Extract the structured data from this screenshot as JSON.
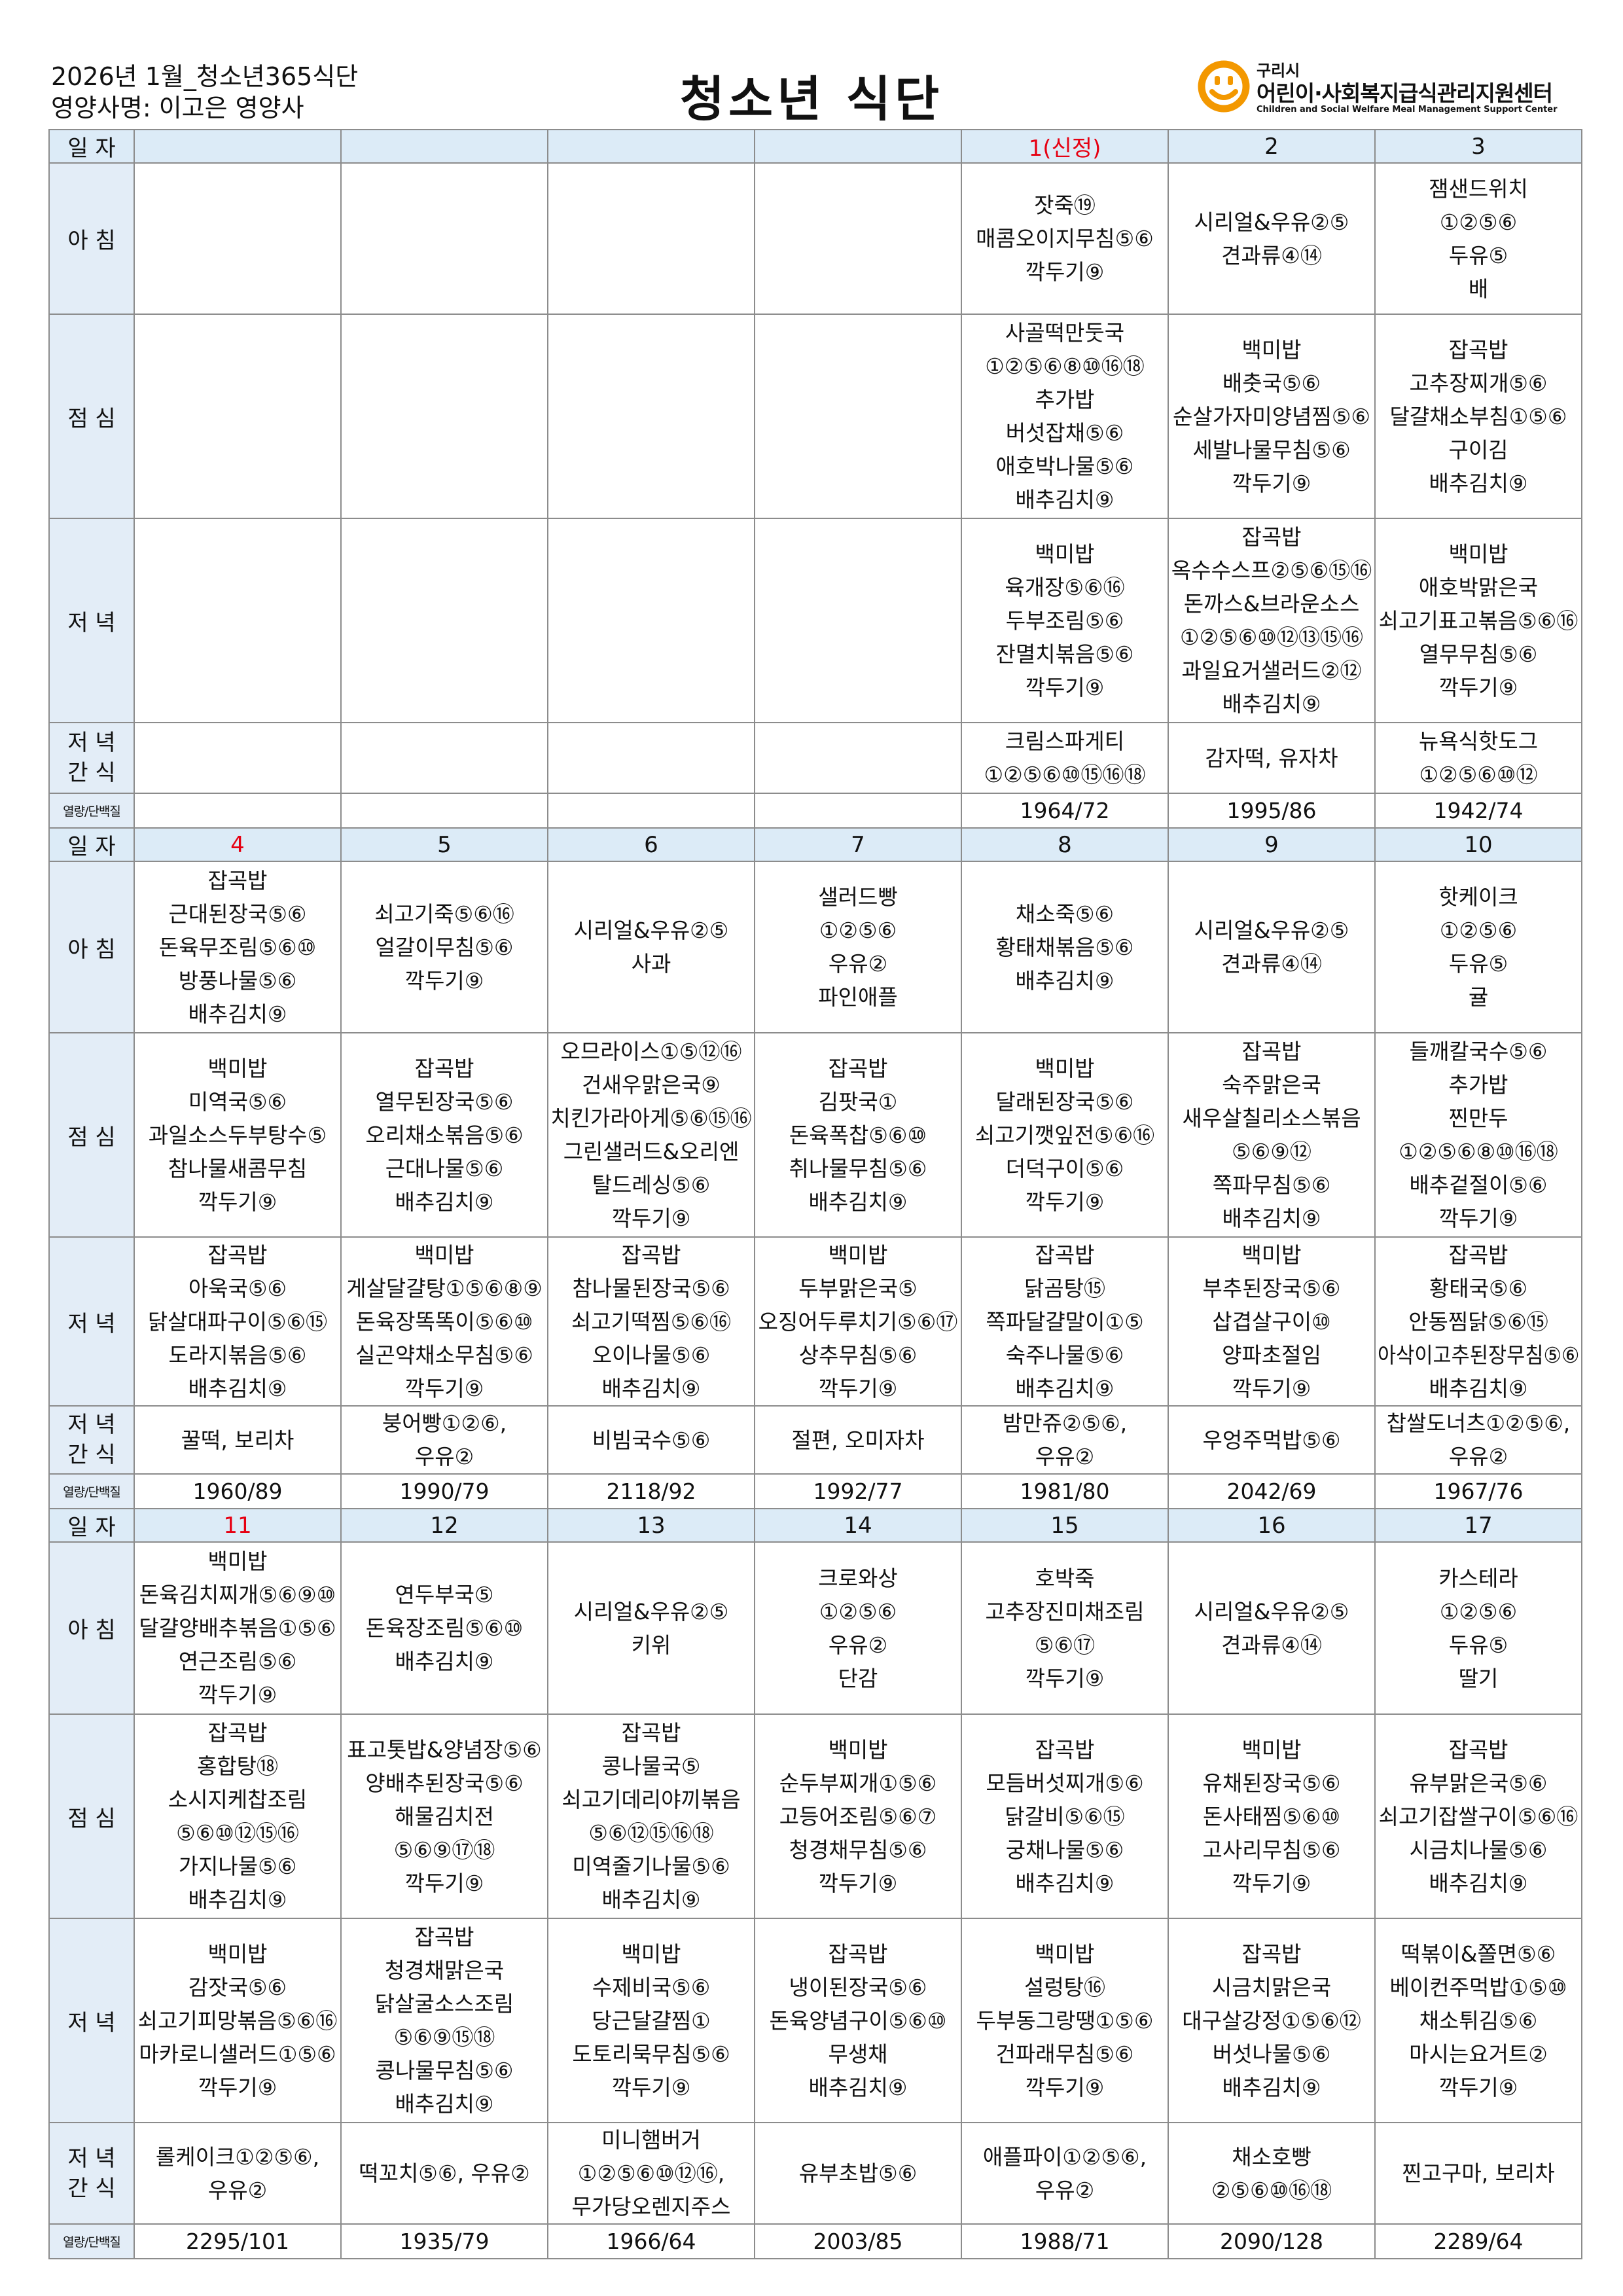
{
  "header": {
    "left_line1": "2026년 1월_청소년365식단",
    "left_line2": "영양사명: 이고은 영양사",
    "title": "청소년 식단",
    "logo_city": "구리시",
    "logo_name": "어린이·사회복지급식관리지원센터",
    "logo_sub": "Children and Social Welfare Meal Management Support Center"
  },
  "table": {
    "holiday_color": "#e60012",
    "weeks": [
      {
        "day_label": "일 자",
        "days": [
          null,
          null,
          null,
          null,
          "1(신정)",
          "2",
          "3"
        ],
        "holidays": [
          4
        ],
        "rows": [
          {
            "label": [
              "아 침"
            ],
            "cells": [
              null,
              null,
              null,
              null,
              [
                "잣죽⑲",
                "매콤오이지무침⑤⑥",
                "깍두기⑨"
              ],
              [
                "시리얼&우유②⑤",
                "견과류④⑭"
              ],
              [
                "잼샌드위치",
                "①②⑤⑥",
                "두유⑤",
                "배"
              ]
            ]
          },
          {
            "label": [
              "점 심"
            ],
            "cells": [
              null,
              null,
              null,
              null,
              [
                "사골떡만둣국",
                "①②⑤⑥⑧⑩⑯⑱",
                "추가밥",
                "버섯잡채⑤⑥",
                "애호박나물⑤⑥",
                "배추김치⑨"
              ],
              [
                "백미밥",
                "배춧국⑤⑥",
                "순살가자미양념찜⑤⑥",
                "세발나물무침⑤⑥",
                "깍두기⑨"
              ],
              [
                "잡곡밥",
                "고추장찌개⑤⑥",
                "달걀채소부침①⑤⑥",
                "구이김",
                "배추김치⑨"
              ]
            ]
          },
          {
            "label": [
              "저 녁"
            ],
            "cells": [
              null,
              null,
              null,
              null,
              [
                "백미밥",
                "육개장⑤⑥⑯",
                "두부조림⑤⑥",
                "잔멸치볶음⑤⑥",
                "깍두기⑨"
              ],
              [
                "잡곡밥",
                "옥수수스프②⑤⑥⑮⑯",
                "돈까스&브라운소스",
                "①②⑤⑥⑩⑫⑬⑮⑯",
                "과일요거샐러드②⑫",
                "배추김치⑨"
              ],
              [
                "백미밥",
                "애호박맑은국",
                "쇠고기표고볶음⑤⑥⑯",
                "열무무침⑤⑥",
                "깍두기⑨"
              ]
            ]
          },
          {
            "label": [
              "저 녁",
              "간 식"
            ],
            "cells": [
              null,
              null,
              null,
              null,
              [
                "크림스파게티",
                "①②⑤⑥⑩⑮⑯⑱"
              ],
              [
                "감자떡, 유자차"
              ],
              [
                "뉴욕식핫도그",
                "①②⑤⑥⑩⑫"
              ]
            ]
          },
          {
            "label": [
              "열량/단백질"
            ],
            "cells": [
              null,
              null,
              null,
              null,
              [
                "1964/72"
              ],
              [
                "1995/86"
              ],
              [
                "1942/74"
              ]
            ]
          }
        ]
      },
      {
        "day_label": "일 자",
        "days": [
          "4",
          "5",
          "6",
          "7",
          "8",
          "9",
          "10"
        ],
        "holidays": [
          0
        ],
        "rows": [
          {
            "label": [
              "아 침"
            ],
            "cells": [
              [
                "잡곡밥",
                "근대된장국⑤⑥",
                "돈육무조림⑤⑥⑩",
                "방풍나물⑤⑥",
                "배추김치⑨"
              ],
              [
                "쇠고기죽⑤⑥⑯",
                "얼갈이무침⑤⑥",
                "깍두기⑨"
              ],
              [
                "시리얼&우유②⑤",
                "사과"
              ],
              [
                "샐러드빵",
                "①②⑤⑥",
                "우유②",
                "파인애플"
              ],
              [
                "채소죽⑤⑥",
                "황태채볶음⑤⑥",
                "배추김치⑨"
              ],
              [
                "시리얼&우유②⑤",
                "견과류④⑭"
              ],
              [
                "핫케이크",
                "①②⑤⑥",
                "두유⑤",
                "귤"
              ]
            ]
          },
          {
            "label": [
              "점 심"
            ],
            "cells": [
              [
                "백미밥",
                "미역국⑤⑥",
                "과일소스두부탕수⑤",
                "참나물새콤무침",
                "깍두기⑨"
              ],
              [
                "잡곡밥",
                "열무된장국⑤⑥",
                "오리채소볶음⑤⑥",
                "근대나물⑤⑥",
                "배추김치⑨"
              ],
              [
                "오므라이스①⑤⑫⑯",
                "건새우맑은국⑨",
                "치킨가라아게⑤⑥⑮⑯",
                "그린샐러드&오리엔",
                "탈드레싱⑤⑥",
                "깍두기⑨"
              ],
              [
                "잡곡밥",
                "김팟국①",
                "돈육폭찹⑤⑥⑩",
                "취나물무침⑤⑥",
                "배추김치⑨"
              ],
              [
                "백미밥",
                "달래된장국⑤⑥",
                "쇠고기깻잎전⑤⑥⑯",
                "더덕구이⑤⑥",
                "깍두기⑨"
              ],
              [
                "잡곡밥",
                "숙주맑은국",
                "새우살칠리소스볶음",
                "⑤⑥⑨⑫",
                "쪽파무침⑤⑥",
                "배추김치⑨"
              ],
              [
                "들깨칼국수⑤⑥",
                "추가밥",
                "찐만두",
                "①②⑤⑥⑧⑩⑯⑱",
                "배추겉절이⑤⑥",
                "깍두기⑨"
              ]
            ]
          },
          {
            "label": [
              "저 녁"
            ],
            "cells": [
              [
                "잡곡밥",
                "아욱국⑤⑥",
                "닭살대파구이⑤⑥⑮",
                "도라지볶음⑤⑥",
                "배추김치⑨"
              ],
              [
                "백미밥",
                "게살달걀탕①⑤⑥⑧⑨",
                "돈육장똑똑이⑤⑥⑩",
                "실곤약채소무침⑤⑥",
                "깍두기⑨"
              ],
              [
                "잡곡밥",
                "참나물된장국⑤⑥",
                "쇠고기떡찜⑤⑥⑯",
                "오이나물⑤⑥",
                "배추김치⑨"
              ],
              [
                "백미밥",
                "두부맑은국⑤",
                "오징어두루치기⑤⑥⑰",
                "상추무침⑤⑥",
                "깍두기⑨"
              ],
              [
                "잡곡밥",
                "닭곰탕⑮",
                "쪽파달걀말이①⑤",
                "숙주나물⑤⑥",
                "배추김치⑨"
              ],
              [
                "백미밥",
                "부추된장국⑤⑥",
                "삽겹살구이⑩",
                "양파초절임",
                "깍두기⑨"
              ],
              [
                "잡곡밥",
                "황태국⑤⑥",
                "안동찜닭⑤⑥⑮",
                "아삭이고추된장무침⑤⑥",
                "배추김치⑨"
              ]
            ]
          },
          {
            "label": [
              "저 녁",
              "간 식"
            ],
            "cells": [
              [
                "꿀떡, 보리차"
              ],
              [
                "붕어빵①②⑥,",
                "우유②"
              ],
              [
                "비빔국수⑤⑥"
              ],
              [
                "절편, 오미자차"
              ],
              [
                "밤만쥬②⑤⑥,",
                "우유②"
              ],
              [
                "우엉주먹밥⑤⑥"
              ],
              [
                "찹쌀도너츠①②⑤⑥,",
                "우유②"
              ]
            ]
          },
          {
            "label": [
              "열량/단백질"
            ],
            "cells": [
              [
                "1960/89"
              ],
              [
                "1990/79"
              ],
              [
                "2118/92"
              ],
              [
                "1992/77"
              ],
              [
                "1981/80"
              ],
              [
                "2042/69"
              ],
              [
                "1967/76"
              ]
            ]
          }
        ]
      },
      {
        "day_label": "일 자",
        "days": [
          "11",
          "12",
          "13",
          "14",
          "15",
          "16",
          "17"
        ],
        "holidays": [
          0
        ],
        "rows": [
          {
            "label": [
              "아 침"
            ],
            "cells": [
              [
                "백미밥",
                "돈육김치찌개⑤⑥⑨⑩",
                "달걀양배추볶음①⑤⑥",
                "연근조림⑤⑥",
                "깍두기⑨"
              ],
              [
                "연두부국⑤",
                "돈육장조림⑤⑥⑩",
                "배추김치⑨"
              ],
              [
                "시리얼&우유②⑤",
                "키위"
              ],
              [
                "크로와상",
                "①②⑤⑥",
                "우유②",
                "단감"
              ],
              [
                "호박죽",
                "고추장진미채조림",
                "⑤⑥⑰",
                "깍두기⑨"
              ],
              [
                "시리얼&우유②⑤",
                "견과류④⑭"
              ],
              [
                "카스테라",
                "①②⑤⑥",
                "두유⑤",
                "딸기"
              ]
            ]
          },
          {
            "label": [
              "점 심"
            ],
            "cells": [
              [
                "잡곡밥",
                "홍합탕⑱",
                "소시지케찹조림",
                "⑤⑥⑩⑫⑮⑯",
                "가지나물⑤⑥",
                "배추김치⑨"
              ],
              [
                "표고톳밥&양념장⑤⑥",
                "양배추된장국⑤⑥",
                "해물김치전",
                "⑤⑥⑨⑰⑱",
                "깍두기⑨"
              ],
              [
                "잡곡밥",
                "콩나물국⑤",
                "쇠고기데리야끼볶음",
                "⑤⑥⑫⑮⑯⑱",
                "미역줄기나물⑤⑥",
                "배추김치⑨"
              ],
              [
                "백미밥",
                "순두부찌개①⑤⑥",
                "고등어조림⑤⑥⑦",
                "청경채무침⑤⑥",
                "깍두기⑨"
              ],
              [
                "잡곡밥",
                "모듬버섯찌개⑤⑥",
                "닭갈비⑤⑥⑮",
                "궁채나물⑤⑥",
                "배추김치⑨"
              ],
              [
                "백미밥",
                "유채된장국⑤⑥",
                "돈사태찜⑤⑥⑩",
                "고사리무침⑤⑥",
                "깍두기⑨"
              ],
              [
                "잡곡밥",
                "유부맑은국⑤⑥",
                "쇠고기잡쌀구이⑤⑥⑯",
                "시금치나물⑤⑥",
                "배추김치⑨"
              ]
            ]
          },
          {
            "label": [
              "저 녁"
            ],
            "cells": [
              [
                "백미밥",
                "감잣국⑤⑥",
                "쇠고기피망볶음⑤⑥⑯",
                "마카로니샐러드①⑤⑥",
                "깍두기⑨"
              ],
              [
                "잡곡밥",
                "청경채맑은국",
                "닭살굴소스조림",
                "⑤⑥⑨⑮⑱",
                "콩나물무침⑤⑥",
                "배추김치⑨"
              ],
              [
                "백미밥",
                "수제비국⑤⑥",
                "당근달걀찜①",
                "도토리묵무침⑤⑥",
                "깍두기⑨"
              ],
              [
                "잡곡밥",
                "냉이된장국⑤⑥",
                "돈육양념구이⑤⑥⑩",
                "무생채",
                "배추김치⑨"
              ],
              [
                "백미밥",
                "설렁탕⑯",
                "두부동그랑땡①⑤⑥",
                "건파래무침⑤⑥",
                "깍두기⑨"
              ],
              [
                "잡곡밥",
                "시금치맑은국",
                "대구살강정①⑤⑥⑫",
                "버섯나물⑤⑥",
                "배추김치⑨"
              ],
              [
                "떡볶이&쫄면⑤⑥",
                "베이컨주먹밥①⑤⑩",
                "채소튀김⑤⑥",
                "마시는요거트②",
                "깍두기⑨"
              ]
            ]
          },
          {
            "label": [
              "저 녁",
              "간 식"
            ],
            "cells": [
              [
                "롤케이크①②⑤⑥,",
                "우유②"
              ],
              [
                "떡꼬치⑤⑥, 우유②"
              ],
              [
                "미니햄버거",
                "①②⑤⑥⑩⑫⑯,",
                "무가당오렌지주스"
              ],
              [
                "유부초밥⑤⑥"
              ],
              [
                "애플파이①②⑤⑥,",
                "우유②"
              ],
              [
                "채소호빵",
                "②⑤⑥⑩⑯⑱"
              ],
              [
                "찐고구마, 보리차"
              ]
            ]
          },
          {
            "label": [
              "열량/단백질"
            ],
            "cells": [
              [
                "2295/101"
              ],
              [
                "1935/79"
              ],
              [
                "1966/64"
              ],
              [
                "2003/85"
              ],
              [
                "1988/71"
              ],
              [
                "2090/128"
              ],
              [
                "2289/64"
              ]
            ]
          }
        ]
      }
    ]
  }
}
